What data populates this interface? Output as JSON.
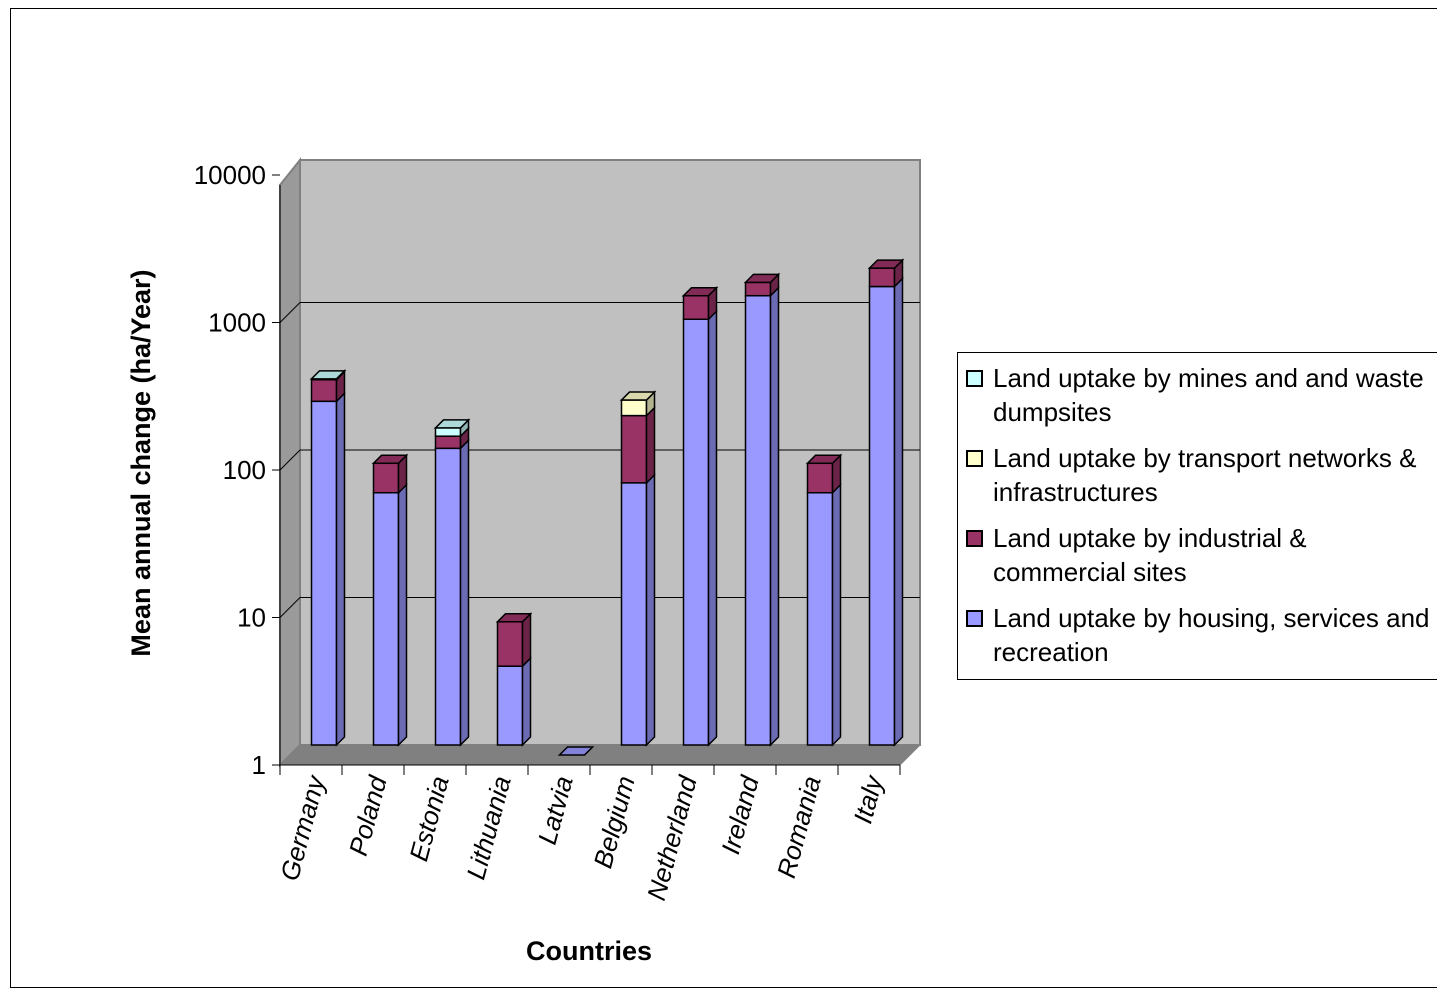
{
  "chart_data": {
    "type": "bar",
    "stacked": true,
    "three_d": true,
    "scale": "log",
    "categories": [
      "Germany",
      "Poland",
      "Estonia",
      "Lithuania",
      "Latvia",
      "Belgium",
      "Netherland",
      "Ireland",
      "Romania",
      "Italy"
    ],
    "series": [
      {
        "name": "Land uptake by housing, services and recreation",
        "color": "#9999ff",
        "values": [
          250,
          60,
          120,
          4,
          1,
          70,
          900,
          1300,
          60,
          1500
        ]
      },
      {
        "name": "Land uptake by industrial & commercial sites",
        "color": "#993366",
        "values": [
          100,
          35,
          25,
          4,
          0,
          130,
          400,
          300,
          35,
          500
        ]
      },
      {
        "name": "Land uptake by transport networks & infrastructures",
        "color": "#ffffcc",
        "values": [
          0,
          0,
          0,
          0,
          0,
          55,
          0,
          0,
          0,
          0
        ]
      },
      {
        "name": "Land uptake by mines and and waste dumpsites",
        "color": "#ccffff",
        "values": [
          5,
          0,
          20,
          0,
          0,
          0,
          0,
          0,
          0,
          0
        ]
      }
    ],
    "ylim": [
      1,
      10000
    ],
    "yticks": [
      "1",
      "10",
      "100",
      "1000",
      "10000"
    ],
    "xlabel": "Countries",
    "ylabel": "Mean annual change (ha/Year)",
    "grid": true,
    "legend_position": "right",
    "legend_order": [
      3,
      2,
      1,
      0
    ],
    "plot_background": "#c0c0c0"
  }
}
